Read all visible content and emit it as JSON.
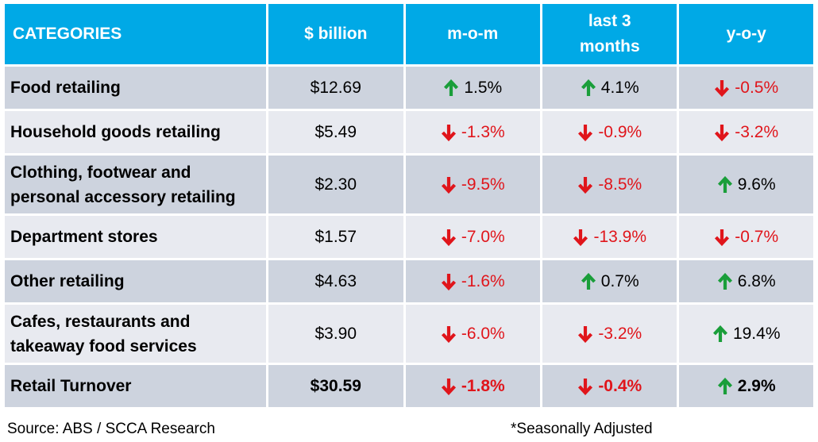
{
  "colors": {
    "header_bg": "#00a9e6",
    "row_dark": "#cdd3de",
    "row_light": "#e8eaf0",
    "up_arrow": "#1a9e3a",
    "down_arrow": "#e0151b",
    "negative_text": "#e0151b"
  },
  "header": {
    "categories": "CATEGORIES",
    "billion": "$ billion",
    "mom": "m-o-m",
    "last3_line1": "last 3",
    "last3_line2": "months",
    "yoy": "y-o-y"
  },
  "rows": [
    {
      "category_lines": [
        "Food retailing"
      ],
      "billion": "$12.69",
      "mom": {
        "value": "1.5%",
        "dir": "up"
      },
      "last3": {
        "value": "4.1%",
        "dir": "up"
      },
      "yoy": {
        "value": "-0.5%",
        "dir": "down"
      }
    },
    {
      "category_lines": [
        "Household goods retailing"
      ],
      "billion": "$5.49",
      "mom": {
        "value": "-1.3%",
        "dir": "down"
      },
      "last3": {
        "value": "-0.9%",
        "dir": "down"
      },
      "yoy": {
        "value": "-3.2%",
        "dir": "down"
      }
    },
    {
      "category_lines": [
        "Clothing, footwear and",
        "personal accessory retailing"
      ],
      "billion": "$2.30",
      "mom": {
        "value": "-9.5%",
        "dir": "down"
      },
      "last3": {
        "value": "-8.5%",
        "dir": "down"
      },
      "yoy": {
        "value": "9.6%",
        "dir": "up"
      }
    },
    {
      "category_lines": [
        "Department stores"
      ],
      "billion": "$1.57",
      "mom": {
        "value": "-7.0%",
        "dir": "down"
      },
      "last3": {
        "value": "-13.9%",
        "dir": "down"
      },
      "yoy": {
        "value": "-0.7%",
        "dir": "down"
      }
    },
    {
      "category_lines": [
        "Other retailing"
      ],
      "billion": "$4.63",
      "mom": {
        "value": "-1.6%",
        "dir": "down"
      },
      "last3": {
        "value": "0.7%",
        "dir": "up"
      },
      "yoy": {
        "value": "6.8%",
        "dir": "up"
      }
    },
    {
      "category_lines": [
        "Cafes, restaurants and",
        "takeaway food services"
      ],
      "billion": "$3.90",
      "mom": {
        "value": "-6.0%",
        "dir": "down"
      },
      "last3": {
        "value": "-3.2%",
        "dir": "down"
      },
      "yoy": {
        "value": "19.4%",
        "dir": "up"
      }
    },
    {
      "category_lines": [
        "Retail Turnover"
      ],
      "billion": "$30.59",
      "mom": {
        "value": "-1.8%",
        "dir": "down"
      },
      "last3": {
        "value": "-0.4%",
        "dir": "down"
      },
      "yoy": {
        "value": "2.9%",
        "dir": "up"
      }
    }
  ],
  "footer": {
    "source": "Source: ABS / SCCA Research",
    "note": "*Seasonally Adjusted"
  }
}
